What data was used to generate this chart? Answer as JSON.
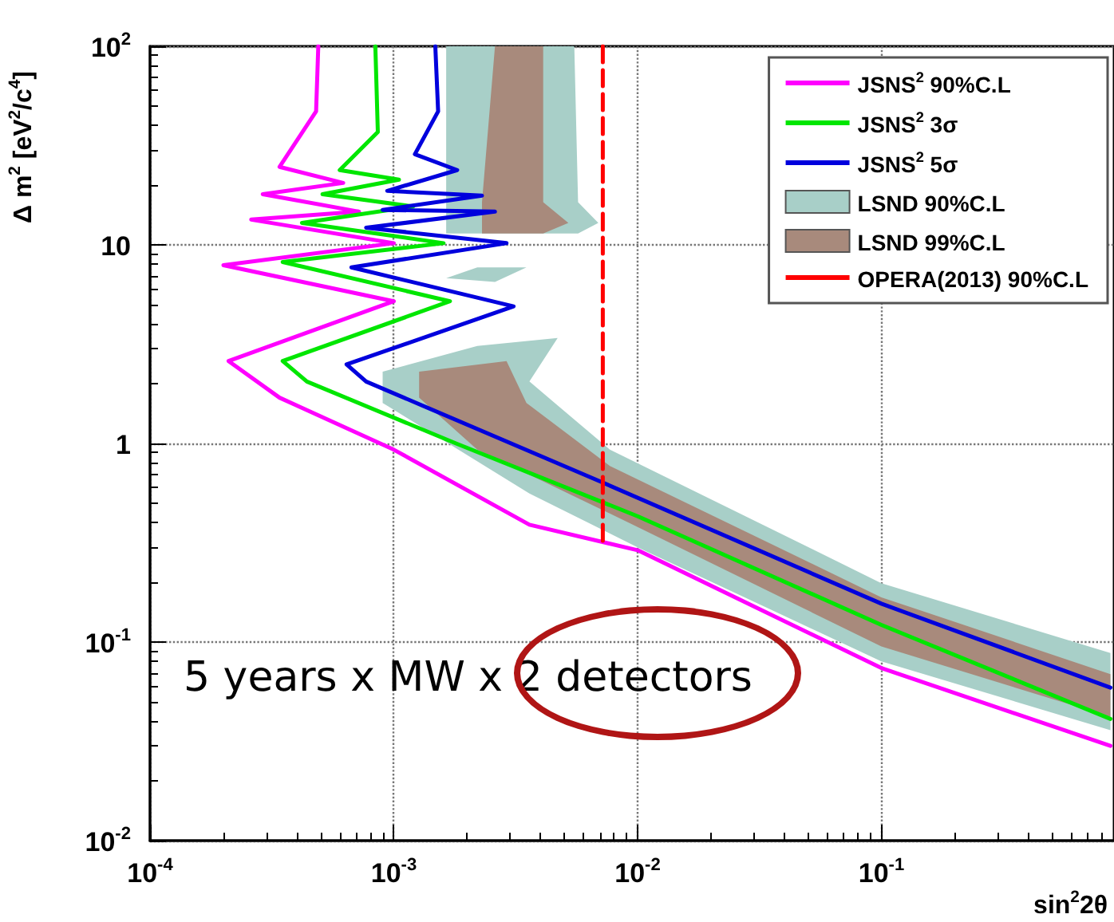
{
  "chart_data": {
    "type": "line",
    "xlabel": "sin$^{2}$2θ",
    "ylabel": "Δ m$^{2}$ [eV$^{2}$/c$^{4}$]",
    "log": "xy",
    "grid": true,
    "legend": "top right",
    "marker": "none",
    "xlim": [
      0.0001,
      0.9
    ],
    "ylim": [
      0.01,
      100
    ],
    "xticks": [
      {
        "value": 0.0001,
        "label": "10$^{-4}$"
      },
      {
        "value": 0.001,
        "label": "10$^{-3}$"
      },
      {
        "value": 0.01,
        "label": "10$^{-2}$"
      },
      {
        "value": 0.1,
        "label": "10$^{-1}$"
      }
    ],
    "yticks": [
      {
        "value": 0.01,
        "label": "10$^{-2}$"
      },
      {
        "value": 0.1,
        "label": "10$^{-1}$"
      },
      1,
      10,
      {
        "value": 100,
        "label": "10$^{2}$"
      }
    ],
    "annotations": [
      "5 years x MW x 2 detectors"
    ],
    "series": [
      {
        "name": "JSNS$^{2}$ 90%C.L",
        "type": "line",
        "color": "#ff00ff",
        "x": [
          0.00049,
          0.00048,
          0.00034,
          0.00062,
          0.00029,
          0.00072,
          0.00026,
          0.001,
          0.0002,
          0.001,
          0.00021,
          0.00034,
          0.001,
          0.0036,
          0.01,
          0.1,
          0.87
        ],
        "values": [
          100,
          47,
          24.7,
          20.5,
          18,
          14.7,
          13.4,
          10.2,
          7.9,
          5.2,
          2.6,
          1.7,
          0.93,
          0.39,
          0.29,
          0.074,
          0.03
        ]
      },
      {
        "name": "JSNS$^{2}$ 3σ",
        "type": "line",
        "color": "#00e600",
        "x": [
          0.00084,
          0.00086,
          0.0006,
          0.00105,
          0.00051,
          0.0012,
          0.00042,
          0.0016,
          0.00035,
          0.0017,
          0.00035,
          0.00044,
          0.0018,
          0.01,
          0.1,
          0.87
        ],
        "values": [
          100,
          37,
          23.8,
          21.3,
          18,
          15.6,
          12.9,
          10.2,
          8.2,
          5.2,
          2.6,
          2.05,
          1,
          0.43,
          0.122,
          0.041
        ]
      },
      {
        "name": "JSNS$^{2}$ 5σ",
        "type": "line",
        "color": "#0000dd",
        "x": [
          0.00148,
          0.00152,
          0.00122,
          0.00182,
          0.00094,
          0.0023,
          0.0009,
          0.0026,
          0.00077,
          0.0029,
          0.00067,
          0.0031,
          0.00064,
          0.00077,
          0.0071,
          0.1,
          0.87
        ],
        "values": [
          100,
          47,
          28.6,
          23.8,
          18.7,
          17.7,
          15,
          14.7,
          12.2,
          10.2,
          7.7,
          4.9,
          2.5,
          2.05,
          0.64,
          0.156,
          0.059
        ]
      },
      {
        "name": "LSND 90%C.L",
        "type": "area",
        "color": "#a8cfc8",
        "x": [
          0.00164,
          0.0055,
          0.0057,
          0.0069,
          0.0057,
          0.00164,
          null,
          0.00164,
          0.0022,
          0.0035,
          0.0026,
          null,
          0.0009,
          0.0022,
          0.0047,
          0.0036,
          0.0077,
          0.1,
          0.87,
          0.87,
          0.1,
          0.01,
          0.0036,
          0.0009
        ],
        "values": [
          100,
          100,
          16.4,
          12.9,
          11.4,
          11.4,
          null,
          6.8,
          7.7,
          7.7,
          6.5,
          null,
          2.3,
          3.1,
          3.4,
          2.05,
          0.93,
          0.198,
          0.088,
          0.036,
          0.08,
          0.3,
          0.56,
          1.6
        ]
      },
      {
        "name": "LSND 99%C.L",
        "type": "area",
        "color": "#a88a7c",
        "x": [
          0.0026,
          0.0041,
          0.0041,
          0.0052,
          0.0041,
          0.0023,
          0.0023,
          null,
          0.00127,
          0.0029,
          0.0035,
          0.0077,
          0.1,
          0.87,
          0.87,
          0.1,
          0.01,
          0.0022,
          0.00127
        ],
        "values": [
          100,
          100,
          16.4,
          12.9,
          11.4,
          11.4,
          16.4,
          null,
          2.3,
          2.6,
          1.6,
          0.77,
          0.168,
          0.069,
          0.042,
          0.095,
          0.38,
          0.93,
          1.7
        ]
      },
      {
        "name": "OPERA(2013) 90%C.L",
        "type": "line",
        "color": "#ff0000",
        "line_style": "dashed",
        "x": [
          0.0072,
          0.0072
        ],
        "values": [
          100,
          0.31
        ]
      }
    ]
  }
}
